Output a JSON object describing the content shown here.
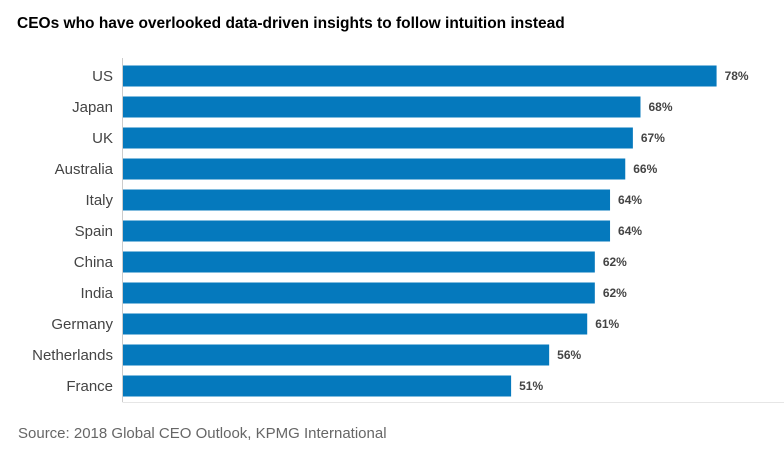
{
  "chart_data": {
    "type": "bar",
    "orientation": "horizontal",
    "title": "CEOs who have overlooked data-driven insights to follow intuition instead",
    "categories": [
      "US",
      "Japan",
      "UK",
      "Australia",
      "Italy",
      "Spain",
      "China",
      "India",
      "Germany",
      "Netherlands",
      "France"
    ],
    "values": [
      78,
      68,
      67,
      66,
      64,
      64,
      62,
      62,
      61,
      56,
      51
    ],
    "value_labels": [
      "78%",
      "68%",
      "67%",
      "66%",
      "64%",
      "64%",
      "62%",
      "62%",
      "61%",
      "56%",
      "51%"
    ],
    "xlabel": "",
    "ylabel": "",
    "unit": "%",
    "xlim": [
      0,
      80
    ],
    "grid": false,
    "legend": "none",
    "bar_color": "#0579bd",
    "source": "Source: 2018 Global CEO Outlook, KPMG International"
  }
}
